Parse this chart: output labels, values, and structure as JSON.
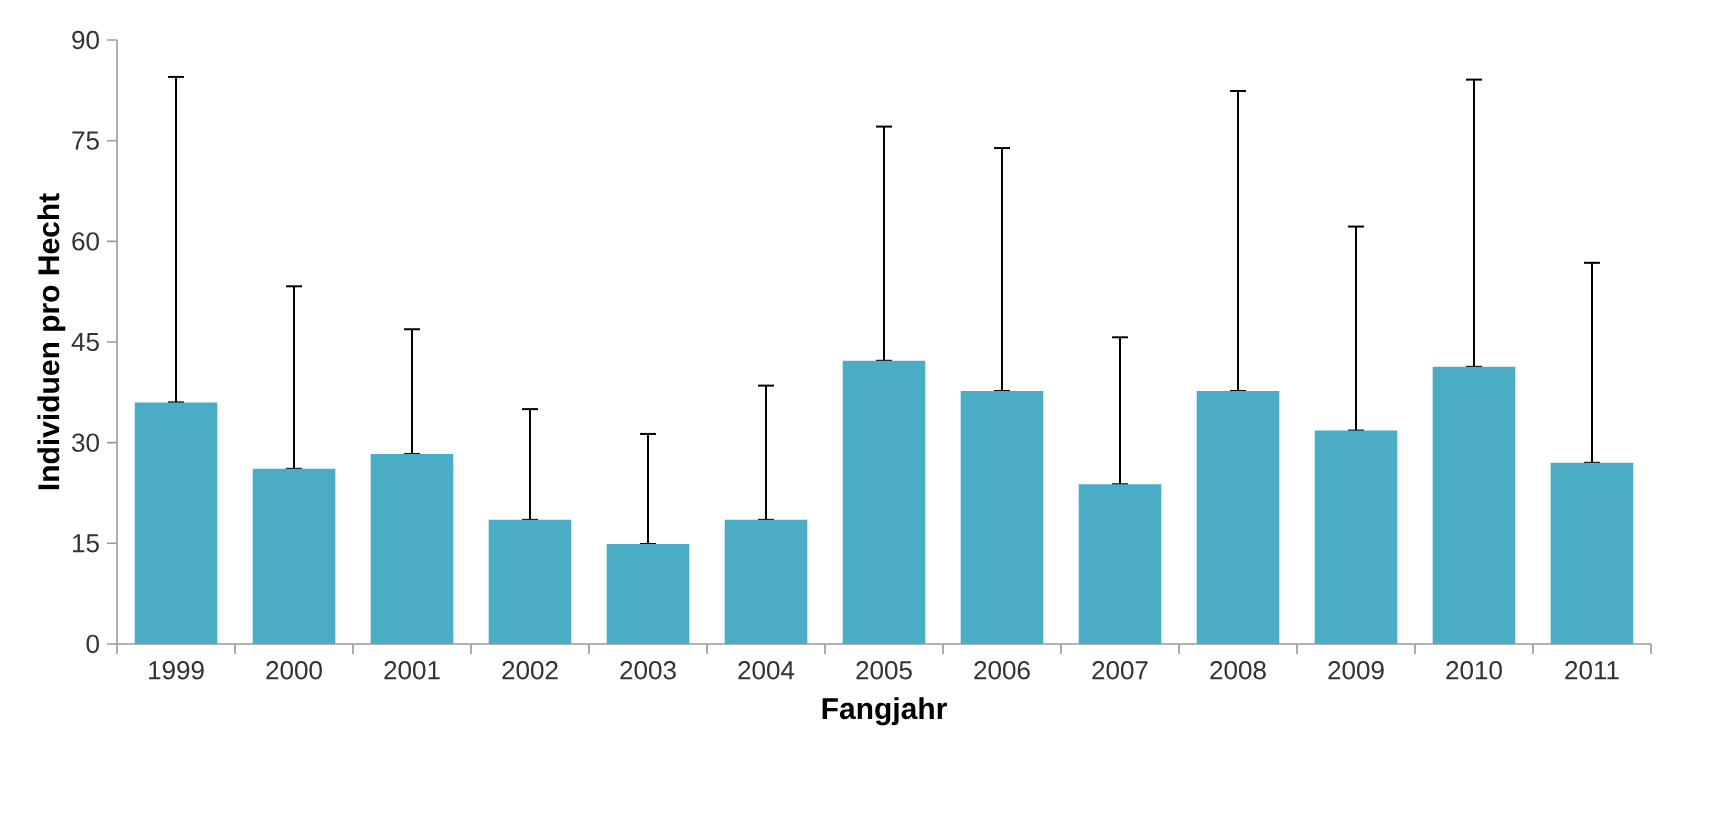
{
  "chart_data": {
    "type": "bar",
    "xlabel": "Fangjahr",
    "ylabel": "Individuen pro Hecht",
    "categories": [
      "1999",
      "2000",
      "2001",
      "2002",
      "2003",
      "2004",
      "2005",
      "2006",
      "2007",
      "2008",
      "2009",
      "2010",
      "2011"
    ],
    "values": [
      36.0,
      26.1,
      28.3,
      18.5,
      14.9,
      18.5,
      42.2,
      37.7,
      23.8,
      37.7,
      31.8,
      41.3,
      27.0
    ],
    "errors": [
      [
        36.0,
        84.5
      ],
      [
        26.1,
        53.3
      ],
      [
        28.3,
        46.9
      ],
      [
        18.5,
        35.0
      ],
      [
        14.9,
        31.3
      ],
      [
        18.5,
        38.5
      ],
      [
        42.2,
        77.1
      ],
      [
        37.7,
        73.9
      ],
      [
        23.8,
        45.7
      ],
      [
        37.7,
        82.4
      ],
      [
        31.8,
        62.2
      ],
      [
        41.3,
        84.1
      ],
      [
        27.0,
        56.8
      ]
    ],
    "color": "#4bacc6",
    "ylim": [
      0,
      90
    ],
    "yticks": [
      0,
      15,
      30,
      45,
      60,
      75,
      90
    ],
    "grid": false
  }
}
